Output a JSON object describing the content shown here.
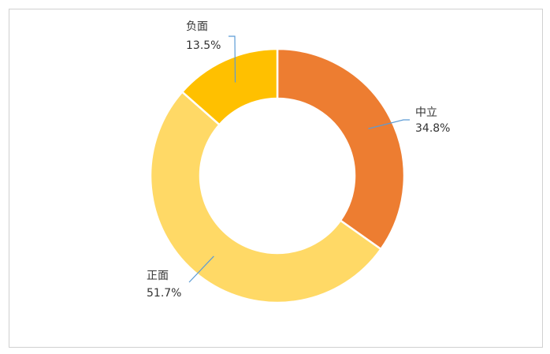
{
  "chart_data": {
    "type": "donut",
    "categories": [
      "中立",
      "正面",
      "负面"
    ],
    "values": [
      34.8,
      51.7,
      13.5
    ],
    "value_labels": [
      "34.8%",
      "51.7%",
      "13.5%"
    ],
    "colors": [
      "#ED7D31",
      "#FFD966",
      "#FFC000"
    ]
  }
}
